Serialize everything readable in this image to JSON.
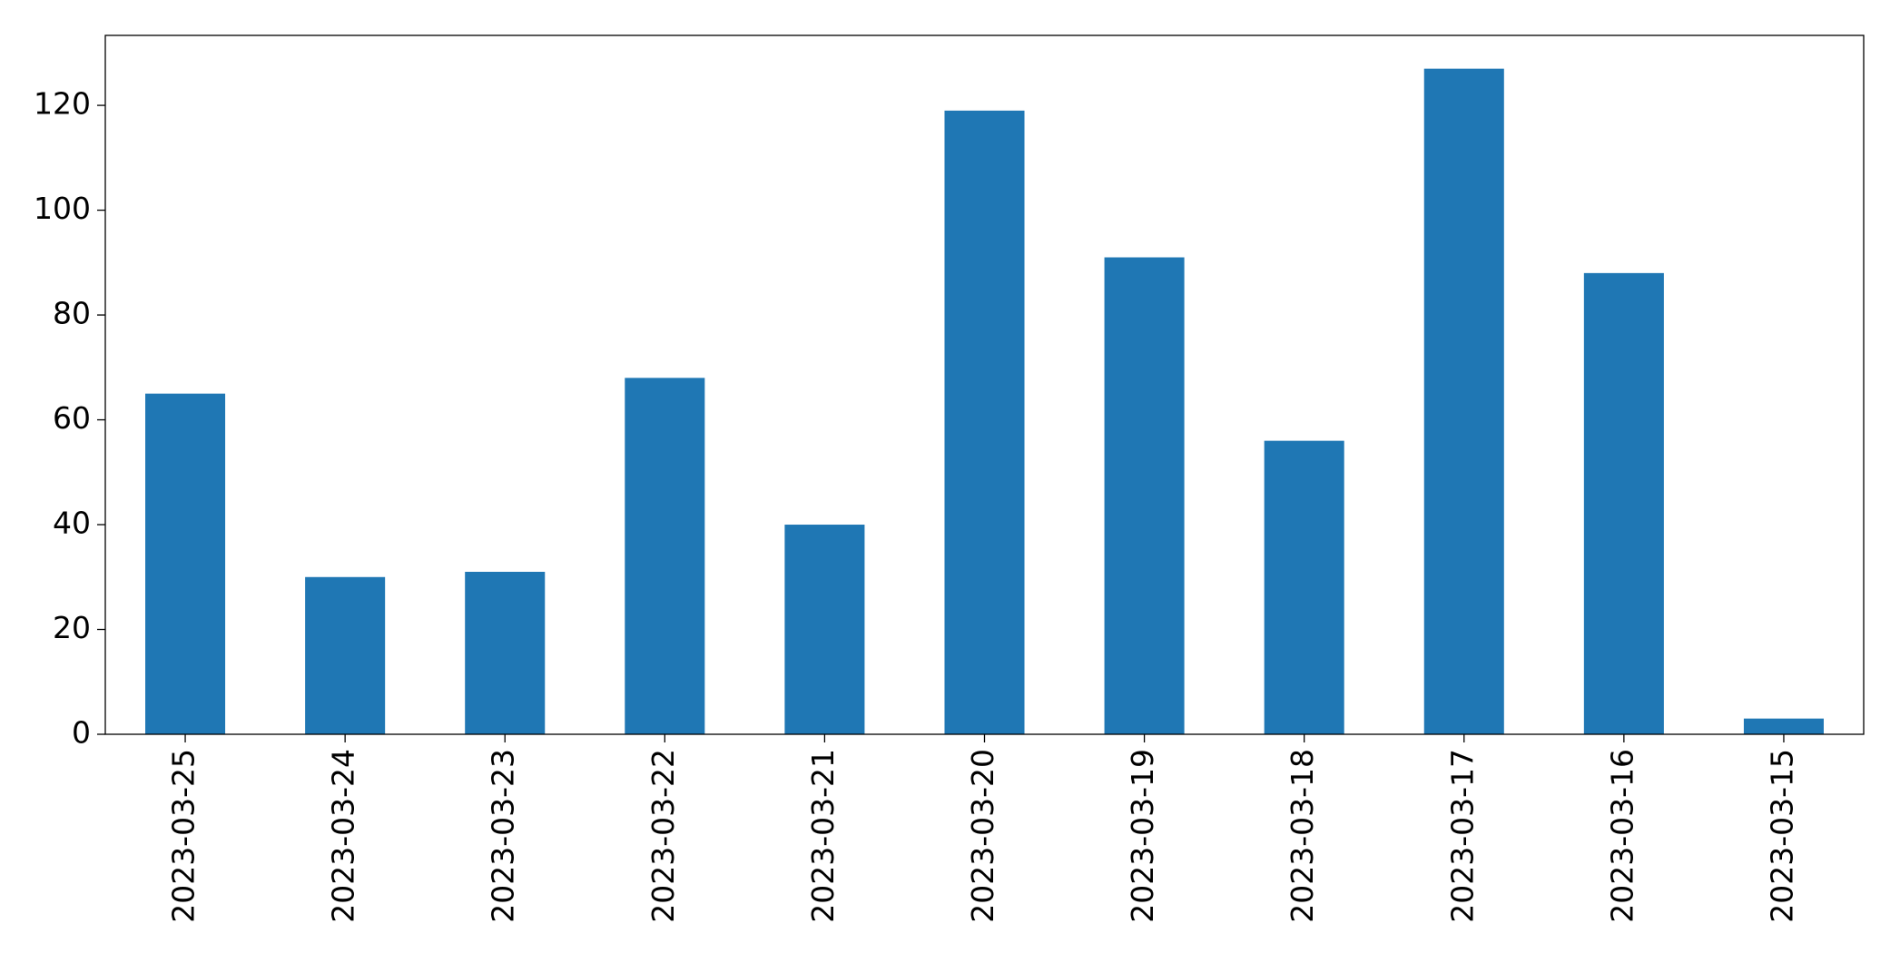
{
  "chart_data": {
    "type": "bar",
    "categories": [
      "2023-03-25",
      "2023-03-24",
      "2023-03-23",
      "2023-03-22",
      "2023-03-21",
      "2023-03-20",
      "2023-03-19",
      "2023-03-18",
      "2023-03-17",
      "2023-03-16",
      "2023-03-15"
    ],
    "values": [
      65,
      30,
      31,
      68,
      40,
      119,
      91,
      56,
      127,
      88,
      3
    ],
    "color": "#1f77b4",
    "ylim": [
      0,
      133.35
    ],
    "yticks": [
      0,
      20,
      40,
      60,
      80,
      100,
      120
    ],
    "grid": false
  }
}
